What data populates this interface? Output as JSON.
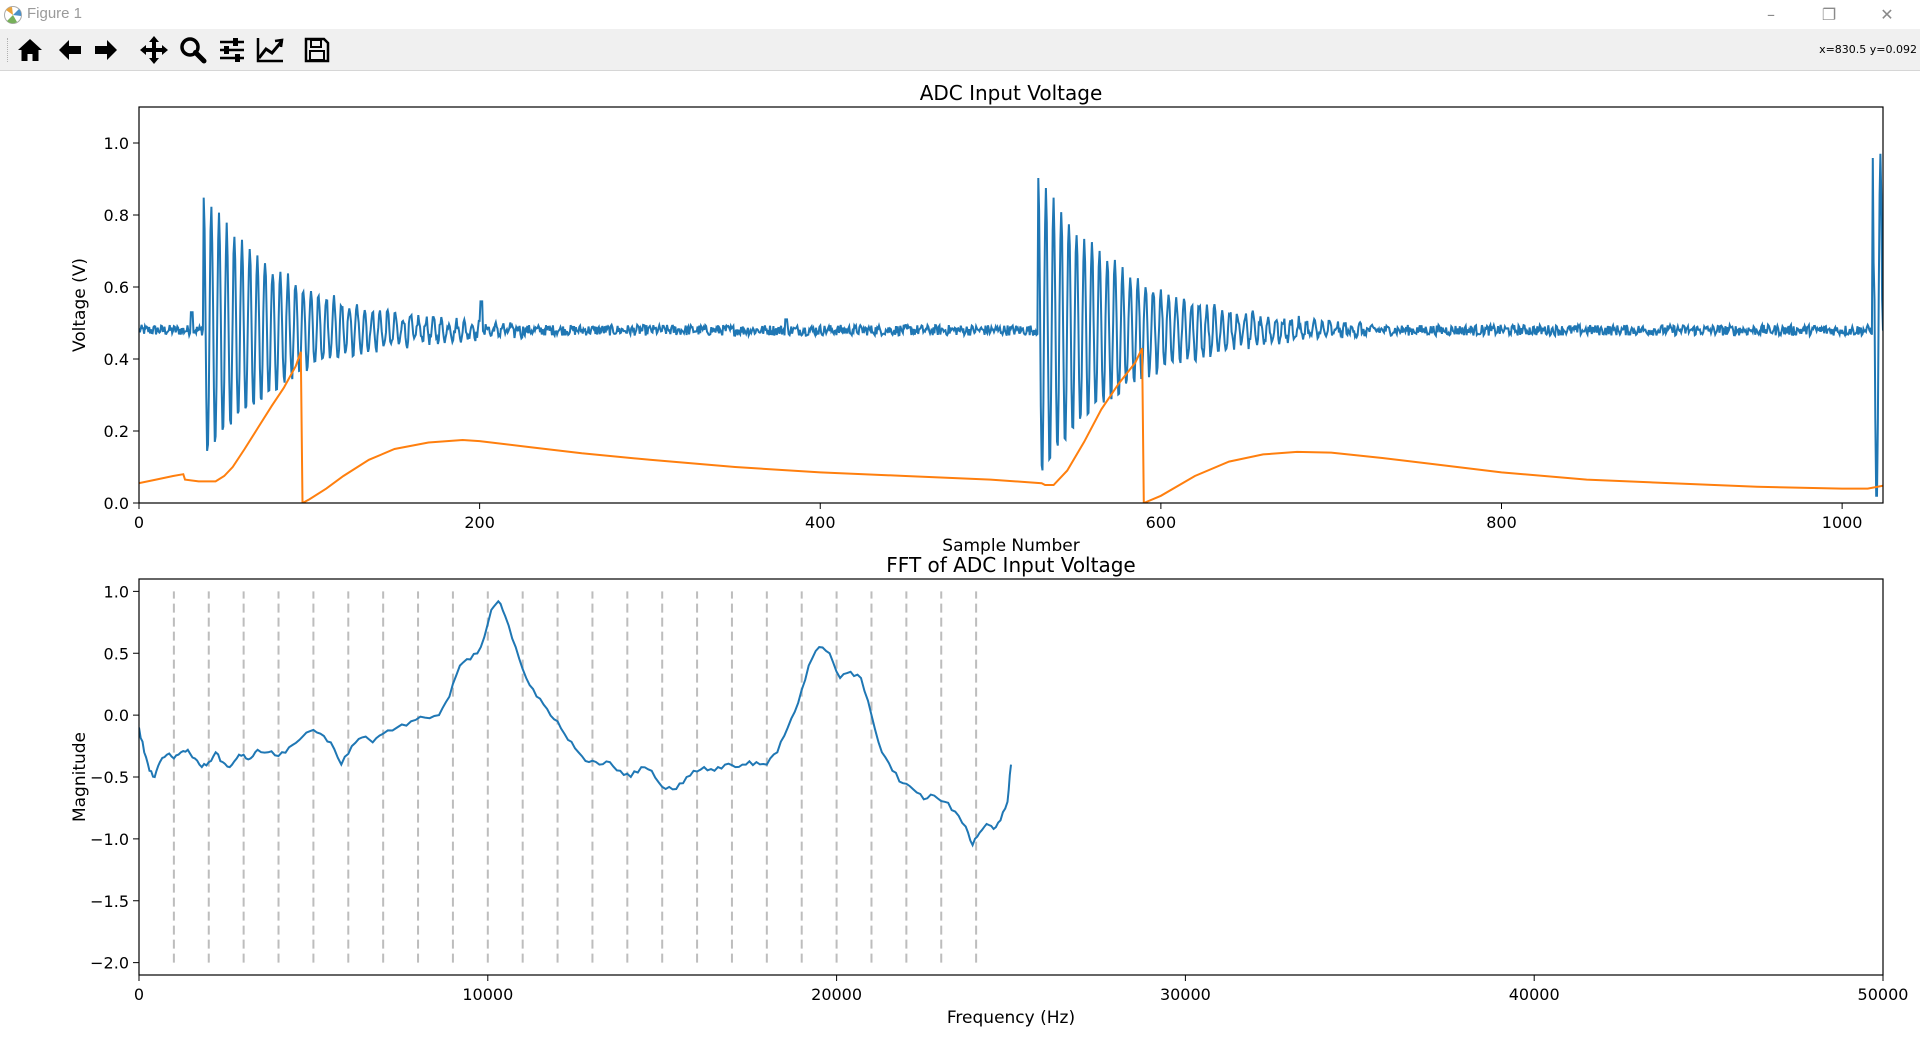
{
  "window": {
    "title": "Figure 1",
    "minimize_label": "–",
    "restore_label": "❐",
    "close_label": "✕"
  },
  "toolbar": {
    "buttons": [
      {
        "name": "home",
        "icon": "home-icon"
      },
      {
        "name": "back",
        "icon": "arrow-left-icon"
      },
      {
        "name": "forward",
        "icon": "arrow-right-icon"
      },
      {
        "name": "pan",
        "icon": "move-icon"
      },
      {
        "name": "zoom",
        "icon": "magnifier-icon"
      },
      {
        "name": "subplots",
        "icon": "sliders-icon"
      },
      {
        "name": "customize",
        "icon": "line-chart-icon"
      },
      {
        "name": "save",
        "icon": "floppy-disk-icon"
      }
    ],
    "coordinates": "x=830.5 y=0.092"
  },
  "colors": {
    "blue": "#1f77b4",
    "orange": "#ff7f0e",
    "grid_dash": "#bdbdbd"
  },
  "chart_data": [
    {
      "type": "line",
      "title": "ADC Input Voltage",
      "xlabel": "Sample Number",
      "ylabel": "Voltage (V)",
      "xlim": [
        0,
        1024
      ],
      "ylim": [
        0,
        1.1
      ],
      "xticks": [
        0,
        200,
        400,
        600,
        800,
        1000
      ],
      "yticks": [
        0.0,
        0.2,
        0.4,
        0.6,
        0.8,
        1.0
      ],
      "xtick_labels": [
        "0",
        "200",
        "400",
        "600",
        "800",
        "1000"
      ],
      "ytick_labels": [
        "0.0",
        "0.2",
        "0.4",
        "0.6",
        "0.8",
        "1.0"
      ],
      "series": [
        {
          "color": "#1f77b4",
          "note_shape": "baseline ~0.48 V with decaying oscillation bursts",
          "baseline": 0.48,
          "bursts": [
            {
              "start": 38,
              "peak_amp": 0.37,
              "decay_end": 205,
              "period": 4.5
            },
            {
              "start": 528,
              "peak_amp": 0.42,
              "decay_end": 700,
              "period": 4.5
            },
            {
              "start": 1018,
              "peak_amp": 0.49,
              "decay_end": 1024,
              "period": 4.5
            }
          ],
          "points": [
            [
              0,
              0.48
            ],
            [
              30,
              0.48
            ],
            [
              31,
              0.53
            ],
            [
              32,
              0.48
            ],
            [
              38,
              0.48
            ],
            [
              40,
              0.85
            ],
            [
              42,
              0.22
            ],
            [
              200,
              0.48
            ],
            [
              201,
              0.56
            ],
            [
              202,
              0.49
            ],
            [
              528,
              0.48
            ],
            [
              530,
              0.8
            ],
            [
              540,
              0.05
            ],
            [
              545,
              0.9
            ],
            [
              1018,
              0.48
            ],
            [
              1020,
              0.97
            ],
            [
              1022,
              0.17
            ],
            [
              1024,
              0.88
            ]
          ]
        },
        {
          "color": "#ff7f0e",
          "points": [
            [
              0,
              0.055
            ],
            [
              10,
              0.065
            ],
            [
              20,
              0.075
            ],
            [
              26,
              0.08
            ],
            [
              27,
              0.065
            ],
            [
              35,
              0.06
            ],
            [
              45,
              0.06
            ],
            [
              50,
              0.075
            ],
            [
              55,
              0.1
            ],
            [
              62,
              0.15
            ],
            [
              70,
              0.21
            ],
            [
              78,
              0.27
            ],
            [
              85,
              0.32
            ],
            [
              92,
              0.38
            ],
            [
              95,
              0.42
            ],
            [
              96,
              0.0
            ],
            [
              100,
              0.01
            ],
            [
              110,
              0.04
            ],
            [
              120,
              0.075
            ],
            [
              135,
              0.12
            ],
            [
              150,
              0.15
            ],
            [
              170,
              0.168
            ],
            [
              190,
              0.175
            ],
            [
              200,
              0.172
            ],
            [
              230,
              0.155
            ],
            [
              260,
              0.138
            ],
            [
              300,
              0.12
            ],
            [
              350,
              0.1
            ],
            [
              400,
              0.085
            ],
            [
              450,
              0.075
            ],
            [
              500,
              0.065
            ],
            [
              530,
              0.055
            ],
            [
              532,
              0.05
            ],
            [
              537,
              0.05
            ],
            [
              545,
              0.09
            ],
            [
              555,
              0.17
            ],
            [
              565,
              0.26
            ],
            [
              575,
              0.33
            ],
            [
              585,
              0.39
            ],
            [
              589,
              0.43
            ],
            [
              590,
              0.0
            ],
            [
              600,
              0.02
            ],
            [
              620,
              0.075
            ],
            [
              640,
              0.115
            ],
            [
              660,
              0.135
            ],
            [
              680,
              0.142
            ],
            [
              700,
              0.14
            ],
            [
              730,
              0.125
            ],
            [
              760,
              0.108
            ],
            [
              800,
              0.085
            ],
            [
              850,
              0.065
            ],
            [
              900,
              0.055
            ],
            [
              950,
              0.045
            ],
            [
              1000,
              0.04
            ],
            [
              1015,
              0.04
            ],
            [
              1024,
              0.048
            ]
          ]
        }
      ]
    },
    {
      "type": "line",
      "title": "FFT of ADC Input Voltage",
      "xlabel": "Frequency (Hz)",
      "ylabel": "Magnitude",
      "xlim": [
        0,
        50000
      ],
      "ylim": [
        -2.1,
        1.1
      ],
      "xticks": [
        0,
        10000,
        20000,
        30000,
        40000,
        50000
      ],
      "yticks": [
        -2.0,
        -1.5,
        -1.0,
        -0.5,
        0.0,
        0.5,
        1.0
      ],
      "xtick_labels": [
        "0",
        "10000",
        "20000",
        "30000",
        "40000",
        "50000"
      ],
      "ytick_labels": [
        "−2.0",
        "−1.5",
        "−1.0",
        "−0.5",
        "0.0",
        "0.5",
        "1.0"
      ],
      "vlines": [
        1000,
        2000,
        3000,
        4000,
        5000,
        6000,
        7000,
        8000,
        9000,
        10000,
        11000,
        12000,
        13000,
        14000,
        15000,
        16000,
        17000,
        18000,
        19000,
        20000,
        21000,
        22000,
        23000,
        24000
      ],
      "vline_range": [
        -2.0,
        1.0
      ],
      "series": [
        {
          "color": "#1f77b4",
          "points": [
            [
              0,
              -0.1
            ],
            [
              150,
              -0.3
            ],
            [
              300,
              -0.45
            ],
            [
              450,
              -0.5
            ],
            [
              600,
              -0.38
            ],
            [
              800,
              -0.32
            ],
            [
              1000,
              -0.35
            ],
            [
              1200,
              -0.3
            ],
            [
              1400,
              -0.28
            ],
            [
              1600,
              -0.35
            ],
            [
              1800,
              -0.42
            ],
            [
              2000,
              -0.38
            ],
            [
              2200,
              -0.3
            ],
            [
              2400,
              -0.38
            ],
            [
              2600,
              -0.42
            ],
            [
              2800,
              -0.35
            ],
            [
              3000,
              -0.32
            ],
            [
              3200,
              -0.35
            ],
            [
              3400,
              -0.28
            ],
            [
              3700,
              -0.3
            ],
            [
              4000,
              -0.33
            ],
            [
              4300,
              -0.26
            ],
            [
              4600,
              -0.2
            ],
            [
              4900,
              -0.13
            ],
            [
              5200,
              -0.15
            ],
            [
              5500,
              -0.22
            ],
            [
              5800,
              -0.4
            ],
            [
              6100,
              -0.25
            ],
            [
              6400,
              -0.18
            ],
            [
              6700,
              -0.22
            ],
            [
              7000,
              -0.15
            ],
            [
              7400,
              -0.1
            ],
            [
              7800,
              -0.05
            ],
            [
              8200,
              -0.02
            ],
            [
              8600,
              0.0
            ],
            [
              8900,
              0.15
            ],
            [
              9200,
              0.4
            ],
            [
              9500,
              0.45
            ],
            [
              9800,
              0.55
            ],
            [
              10100,
              0.85
            ],
            [
              10300,
              0.92
            ],
            [
              10500,
              0.8
            ],
            [
              10800,
              0.55
            ],
            [
              11100,
              0.3
            ],
            [
              11400,
              0.15
            ],
            [
              11700,
              0.05
            ],
            [
              12000,
              -0.05
            ],
            [
              12300,
              -0.2
            ],
            [
              12600,
              -0.3
            ],
            [
              12900,
              -0.38
            ],
            [
              13200,
              -0.4
            ],
            [
              13500,
              -0.38
            ],
            [
              13800,
              -0.45
            ],
            [
              14100,
              -0.5
            ],
            [
              14400,
              -0.42
            ],
            [
              14700,
              -0.45
            ],
            [
              15000,
              -0.58
            ],
            [
              15300,
              -0.6
            ],
            [
              15600,
              -0.55
            ],
            [
              15900,
              -0.45
            ],
            [
              16200,
              -0.42
            ],
            [
              16500,
              -0.45
            ],
            [
              16800,
              -0.4
            ],
            [
              17100,
              -0.42
            ],
            [
              17400,
              -0.4
            ],
            [
              17700,
              -0.38
            ],
            [
              18000,
              -0.4
            ],
            [
              18300,
              -0.3
            ],
            [
              18600,
              -0.1
            ],
            [
              18900,
              0.1
            ],
            [
              19200,
              0.4
            ],
            [
              19500,
              0.55
            ],
            [
              19800,
              0.5
            ],
            [
              20100,
              0.3
            ],
            [
              20400,
              0.35
            ],
            [
              20700,
              0.3
            ],
            [
              21000,
              0.0
            ],
            [
              21300,
              -0.3
            ],
            [
              21600,
              -0.45
            ],
            [
              21900,
              -0.55
            ],
            [
              22200,
              -0.6
            ],
            [
              22500,
              -0.68
            ],
            [
              22800,
              -0.65
            ],
            [
              23100,
              -0.7
            ],
            [
              23400,
              -0.78
            ],
            [
              23700,
              -0.9
            ],
            [
              23900,
              -1.05
            ],
            [
              24100,
              -0.95
            ],
            [
              24300,
              -0.88
            ],
            [
              24500,
              -0.92
            ],
            [
              24700,
              -0.85
            ],
            [
              24900,
              -0.7
            ],
            [
              25000,
              -0.4
            ]
          ]
        }
      ]
    }
  ]
}
